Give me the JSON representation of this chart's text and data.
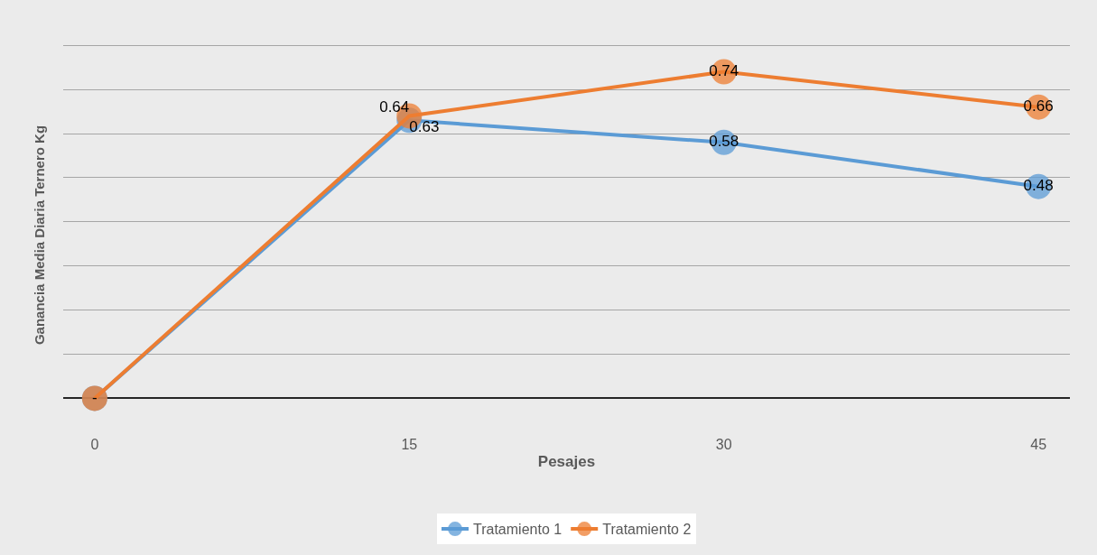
{
  "chart_data": {
    "type": "line",
    "xlabel": "Pesajes",
    "ylabel": "Ganancia Media Diaria Ternero Kg",
    "categories": [
      "0",
      "15",
      "30",
      "45"
    ],
    "series": [
      {
        "name": "Tratamiento 1",
        "color": "#5b9bd5",
        "values": [
          0,
          0.63,
          0.58,
          0.48
        ],
        "value_labels": [
          null,
          "0.63",
          "0.58",
          "0.48"
        ]
      },
      {
        "name": "Tratamiento 2",
        "color": "#ed7d31",
        "values": [
          0,
          0.64,
          0.74,
          0.66
        ],
        "value_labels": [
          "-",
          "0.64",
          "0.74",
          "0.66"
        ]
      }
    ],
    "tick_labels": "x",
    "grid": "y",
    "legend": "bottom",
    "marker": "circle",
    "line_style": "solid"
  }
}
